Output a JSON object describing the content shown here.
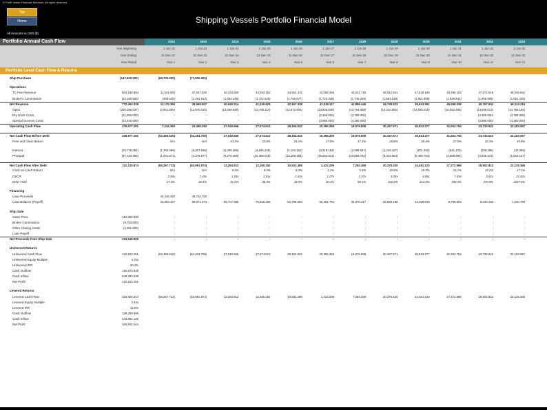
{
  "copyright": "© Profit Vision Financial Services. All rights reserved.",
  "nav": {
    "top_label": "Top",
    "home_label": "Home"
  },
  "title": "Shipping Vessels Portfolio Financial Model",
  "units": "All Amounts in  USD ($)",
  "header": {
    "label": "Portfolio Annual Cash Flow",
    "years": [
      "2022",
      "2023",
      "2024",
      "2025",
      "2026",
      "2027",
      "2028",
      "2029",
      "2030",
      "2031",
      "2032",
      "2033"
    ]
  },
  "subheader": {
    "labels": [
      "Year Beginning",
      "Year Ending",
      "Year Period"
    ],
    "beginning": [
      "1-Jan-22",
      "1-Jan-23",
      "1-Jan-24",
      "1-Jan-25",
      "1-Jan-26",
      "1-Jan-27",
      "1-Jan-28",
      "1-Jan-29",
      "1-Jan-30",
      "1-Jan-31",
      "1-Jan-32",
      "1-Jan-33"
    ],
    "ending": [
      "31-Dec-22",
      "31-Dec-23",
      "31-Dec-24",
      "31-Dec-25",
      "31-Dec-26",
      "31-Dec-27",
      "31-Dec-28",
      "31-Dec-29",
      "31-Dec-30",
      "31-Dec-31",
      "31-Dec-32",
      "31-Dec-33"
    ],
    "period": [
      "Year 1",
      "Year 2",
      "Year 3",
      "Year 4",
      "Year 5",
      "Year 6",
      "Year 7",
      "Year 8",
      "Year 9",
      "Year 10",
      "Year 11",
      "Year 12"
    ]
  },
  "section": "Portfolio Level Cash Flow & Returns",
  "rows": [
    {
      "label": "Ship Purchase",
      "style": "b",
      "total": "(147,600.000)",
      "vals": [
        "(69,700.000)",
        "(77,900.000)",
        "",
        "",
        "",
        "",
        "",
        "",
        "",
        "",
        "",
        ""
      ]
    },
    {
      "gap": true
    },
    {
      "label": "Operations",
      "style": "b",
      "total": "",
      "vals": []
    },
    {
      "label": "TC Fee Revenue",
      "style": "ind",
      "total": "804,638.884",
      "vals": [
        "11,641.000",
        "37,047.820",
        "42,333.660",
        "43,063.152",
        "43,924.415",
        "43,058.456",
        "43,631.715",
        "46,612.941",
        "47,545.199",
        "48,496.103",
        "47,674.619",
        "48,035.642"
      ]
    },
    {
      "label": "Broker's Commission",
      "style": "ind",
      "total": "(32,185.555)",
      "line": true,
      "vals": [
        "(465.640)",
        "(1,481.913)",
        "(1,693.346)",
        "(1,722.526)",
        "(1,756.977)",
        "(1,722.338)",
        "(1,745.269)",
        "(1,864.518)",
        "(1,901.808)",
        "(1,939.844)",
        "(1,906.985)",
        "(1,921.426)"
      ]
    },
    {
      "label": "Net Revenue",
      "style": "b",
      "total": "772,453.328",
      "vals": [
        "11,175.360",
        "35,565.907",
        "40,640.314",
        "41,340.626",
        "42,167.438",
        "41,336.117",
        "41,886.446",
        "44,748.423",
        "45,643.391",
        "46,556.259",
        "45,767.634",
        "46,114.216"
      ]
    },
    {
      "label": "OpEx",
      "style": "ind",
      "total": "(250,286.037)",
      "vals": [
        "(3,941.000)",
        "(12,870.615)",
        "(13,599.648)",
        "(13,766.114)",
        "(13,972.606)",
        "(13,605.848)",
        "(13,764.638)",
        "(14,410.852)",
        "(14,830.015)",
        "(15,052.485)",
        "(14,699.013)",
        "(14,786.150)"
      ]
    },
    {
      "label": "Dry Dock Costs",
      "style": "ind",
      "total": "(21,050.000)",
      "vals": [
        "-",
        "-",
        "-",
        "-",
        "-",
        "(3,355.000)",
        "(3,790.000)",
        "-",
        "-",
        "-",
        "(3,355.000)",
        "(3,795.000)"
      ]
    },
    {
      "label": "Special Surveys Costs",
      "style": "ind",
      "total": "(24,540.000)",
      "line": true,
      "vals": [
        "-",
        "-",
        "-",
        "-",
        "-",
        "(3,980.000)",
        "(4,350.000)",
        "-",
        "-",
        "-",
        "(3,980.000)",
        "(4,350.000)"
      ]
    },
    {
      "label": "Operating Cash Flow",
      "style": "b",
      "total": "476,577.291",
      "vals": [
        "7,234.360",
        "23,495.292",
        "27,040.666",
        "27,574.512",
        "28,194.832",
        "20,395.269",
        "19,976.808",
        "30,337.571",
        "30,813.377",
        "31,503.794",
        "23,733.622",
        "23,183.067"
      ]
    },
    {
      "gap": true
    },
    {
      "label": "Net Cash Flow Before Debt",
      "style": "b",
      "total": "328,977.291",
      "line2": true,
      "vals": [
        "(62,465.640)",
        "(54,404.708)",
        "27,040.666",
        "27,574.512",
        "28,194.832",
        "20,395.269",
        "19,976.808",
        "30,337.571",
        "30,813.377",
        "31,503.794",
        "23,733.622",
        "23,183.067"
      ]
    },
    {
      "label": "Free and Clear Return",
      "style": "i",
      "total": "",
      "vals": [
        "N/A",
        "N/A",
        "23.1%",
        "23.6%",
        "24.1%",
        "17.5%",
        "17.1%",
        "25.8%",
        "26.4%",
        "27.0%",
        "20.3%",
        "19.8%"
      ]
    },
    {
      "gap": true
    },
    {
      "label": "Interest",
      "style": "ind",
      "total": "(29,778.354)",
      "vals": [
        "(1,760.499)",
        "(5,207.590)",
        "(5,485.365)",
        "(4,845.245)",
        "(4,104.162)",
        "(3,319.162)",
        "(2,098.567)",
        "(1,416.187)",
        "(871.492)",
        "(541.125)",
        "(295.388)",
        "(33.355)"
      ]
    },
    {
      "label": "Principal",
      "style": "ind",
      "total": "(87,140.393)",
      "vals": [
        "(1,041.571)",
        "(4,379.577)",
        "(9,270.469)",
        "(10,369.015)",
        "(13,159.183)",
        "(15,653.813)",
        "(10,593.762)",
        "(8,342.984)",
        "(5,480.764)",
        "(3,689.684)",
        "(3,935.423)",
        "(1,024.147)"
      ]
    },
    {
      "gap": true
    },
    {
      "label": "Net Cash Flow After Debt",
      "style": "b",
      "total": "112,129.874",
      "line2": true,
      "vals": [
        "(65,267.712)",
        "(63,991.874)",
        "12,284.812",
        "12,360.252",
        "10,931.488",
        "1,422.295",
        "7,284.459",
        "20,378.420",
        "24,461.120",
        "27,272.986",
        "19,502.813",
        "22,125.365"
      ]
    },
    {
      "label": "Cash-on-Cash Return",
      "style": "i",
      "total": "",
      "vals": [
        "N/A",
        "N/A",
        "9.3%",
        "9.4%",
        "8.3%",
        "1.1%",
        "5.6%",
        "15.8%",
        "18.9%",
        "21.1%",
        "15.1%",
        "17.1%"
      ]
    },
    {
      "label": "DSCR",
      "style": "i",
      "total": "",
      "vals": [
        "2.58x",
        "2.45x",
        "1.83x",
        "1.81x",
        "1.63x",
        "1.07x",
        "1.57x",
        "3.09x",
        "4.85x",
        "7.45x",
        "5.61x",
        "21.82x"
      ]
    },
    {
      "label": "Debt Yield",
      "style": "i",
      "total": "",
      "vals": [
        "17.3%",
        "26.4%",
        "31.5%",
        "36.4%",
        "43.5%",
        "40.4%",
        "58.1%",
        "132.0%",
        "214.6%",
        "358.4%",
        "470.9%",
        "2227.5%"
      ]
    },
    {
      "gap": true
    },
    {
      "label": "Financing",
      "style": "b",
      "total": "",
      "vals": []
    },
    {
      "label": "Loan Proceeds",
      "style": "ind",
      "total": "",
      "vals": [
        "42,416.330",
        "49,722.750",
        "",
        "",
        "",
        "",
        "",
        "",
        "",
        "",
        "",
        ""
      ]
    },
    {
      "label": "Loan Balance (Payoff)",
      "style": "ind",
      "total": "",
      "vals": [
        "41,803.427",
        "89,071.073",
        "85,727.985",
        "75,848.465",
        "64,798.683",
        "50,481.754",
        "34,370.317",
        "22,838.188",
        "14,359.630",
        "8,789.804",
        "5,040.182",
        "1,040.789"
      ]
    },
    {
      "gap": true
    },
    {
      "label": "Ship Sale",
      "style": "b",
      "total": "",
      "vals": []
    },
    {
      "label": "Sales Price",
      "style": "ind",
      "total": "112,550.000",
      "vals": [
        "-",
        "-",
        "-",
        "-",
        "-",
        "-",
        "-",
        "-",
        "-",
        "-",
        "-",
        "-"
      ]
    },
    {
      "label": "Broker Commission",
      "style": "ind",
      "total": "(6,753.000)",
      "vals": [
        "-",
        "-",
        "-",
        "-",
        "-",
        "-",
        "-",
        "-",
        "-",
        "-",
        "-",
        "-"
      ]
    },
    {
      "label": "Other Closing Costs",
      "style": "ind",
      "total": "(2,251.000)",
      "vals": [
        "-",
        "-",
        "-",
        "-",
        "-",
        "-",
        "-",
        "-",
        "-",
        "-",
        "-",
        "-"
      ]
    },
    {
      "label": "Loan Payoff",
      "style": "ind",
      "total": "-",
      "line": true,
      "vals": [
        "-",
        "-",
        "-",
        "-",
        "-",
        "-",
        "-",
        "-",
        "-",
        "-",
        "-",
        "-"
      ]
    },
    {
      "label": "Net Proceeds from Ship Sale",
      "style": "b",
      "total": "103,546.000",
      "vals": [
        "-",
        "-",
        "-",
        "-",
        "-",
        "-",
        "-",
        "-",
        "-",
        "-",
        "-",
        "-"
      ]
    },
    {
      "gap": true
    },
    {
      "label": "Unlevered Returns",
      "style": "b",
      "total": "",
      "vals": []
    },
    {
      "label": "Unlevered Cash Flow",
      "style": "ind",
      "total": "432,523.291",
      "vals": [
        "(62,465.640)",
        "(54,404.708)",
        "27,040.666",
        "27,574.512",
        "28,194.832",
        "20,395.269",
        "19,976.808",
        "30,337.571",
        "30,813.377",
        "31,503.794",
        "23,733.622",
        "23,183.067"
      ]
    },
    {
      "label": "Unlevered Equity Multiple",
      "style": "ind",
      "total": "4.70x",
      "vals": []
    },
    {
      "label": "Unlevered IRR",
      "style": "ind",
      "total": "20.4%",
      "vals": []
    },
    {
      "label": "Cash Outflow",
      "style": "ind",
      "total": "116,870.348",
      "vals": []
    },
    {
      "label": "Cash Inflow",
      "style": "ind",
      "total": "549,393.639",
      "vals": []
    },
    {
      "label": "Net Profit",
      "style": "ind",
      "total": "432,523.291",
      "vals": []
    },
    {
      "gap": true
    },
    {
      "label": "Levered Returns",
      "style": "b",
      "total": "",
      "vals": []
    },
    {
      "label": "Levered Cash Flow",
      "style": "ind",
      "total": "315,604.544",
      "vals": [
        "(65,267.712)",
        "(63,991.874)",
        "12,284.812",
        "12,360.252",
        "10,931.488",
        "1,422.295",
        "7,284.459",
        "20,378.420",
        "24,461.120",
        "27,272.986",
        "19,502.813",
        "22,125.365"
      ]
    },
    {
      "label": "Levered Equity Multiple",
      "style": "ind",
      "total": "3.44x",
      "vals": []
    },
    {
      "label": "Levered IRR",
      "style": "ind",
      "total": "12.0%",
      "vals": []
    },
    {
      "label": "Cash Outflow",
      "style": "ind",
      "total": "129,259.586",
      "vals": []
    },
    {
      "label": "Cash Inflow",
      "style": "ind",
      "total": "444,864.130",
      "vals": []
    },
    {
      "label": "Net Profit",
      "style": "ind",
      "total": "315,604.544",
      "vals": []
    }
  ]
}
